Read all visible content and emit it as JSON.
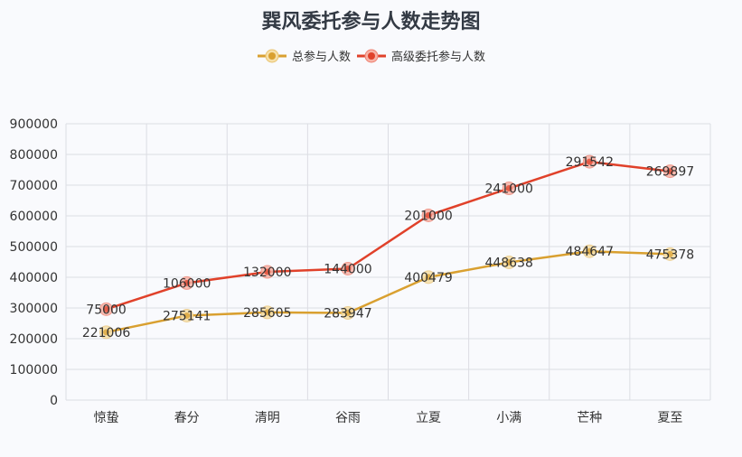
{
  "chart_data": {
    "type": "line",
    "title": "巽风委托参与人数走势图",
    "categories": [
      "惊蛰",
      "春分",
      "清明",
      "谷雨",
      "立夏",
      "小满",
      "芒种",
      "夏至"
    ],
    "series": [
      {
        "name": "总参与人数",
        "color": "#d9a030",
        "values": [
          221006,
          275141,
          285605,
          283947,
          400479,
          448638,
          484647,
          475378
        ],
        "stacked": true
      },
      {
        "name": "高级委托参与人数",
        "color": "#e0412a",
        "values": [
          75000,
          106000,
          132000,
          144000,
          201000,
          241000,
          291542,
          269897
        ],
        "stacked": true
      }
    ],
    "xlabel": "",
    "ylabel": "",
    "ylim": [
      0,
      900000
    ],
    "yticks": [
      0,
      100000,
      200000,
      300000,
      400000,
      500000,
      600000,
      700000,
      800000,
      900000
    ],
    "grid": true,
    "legend_position": "top"
  }
}
